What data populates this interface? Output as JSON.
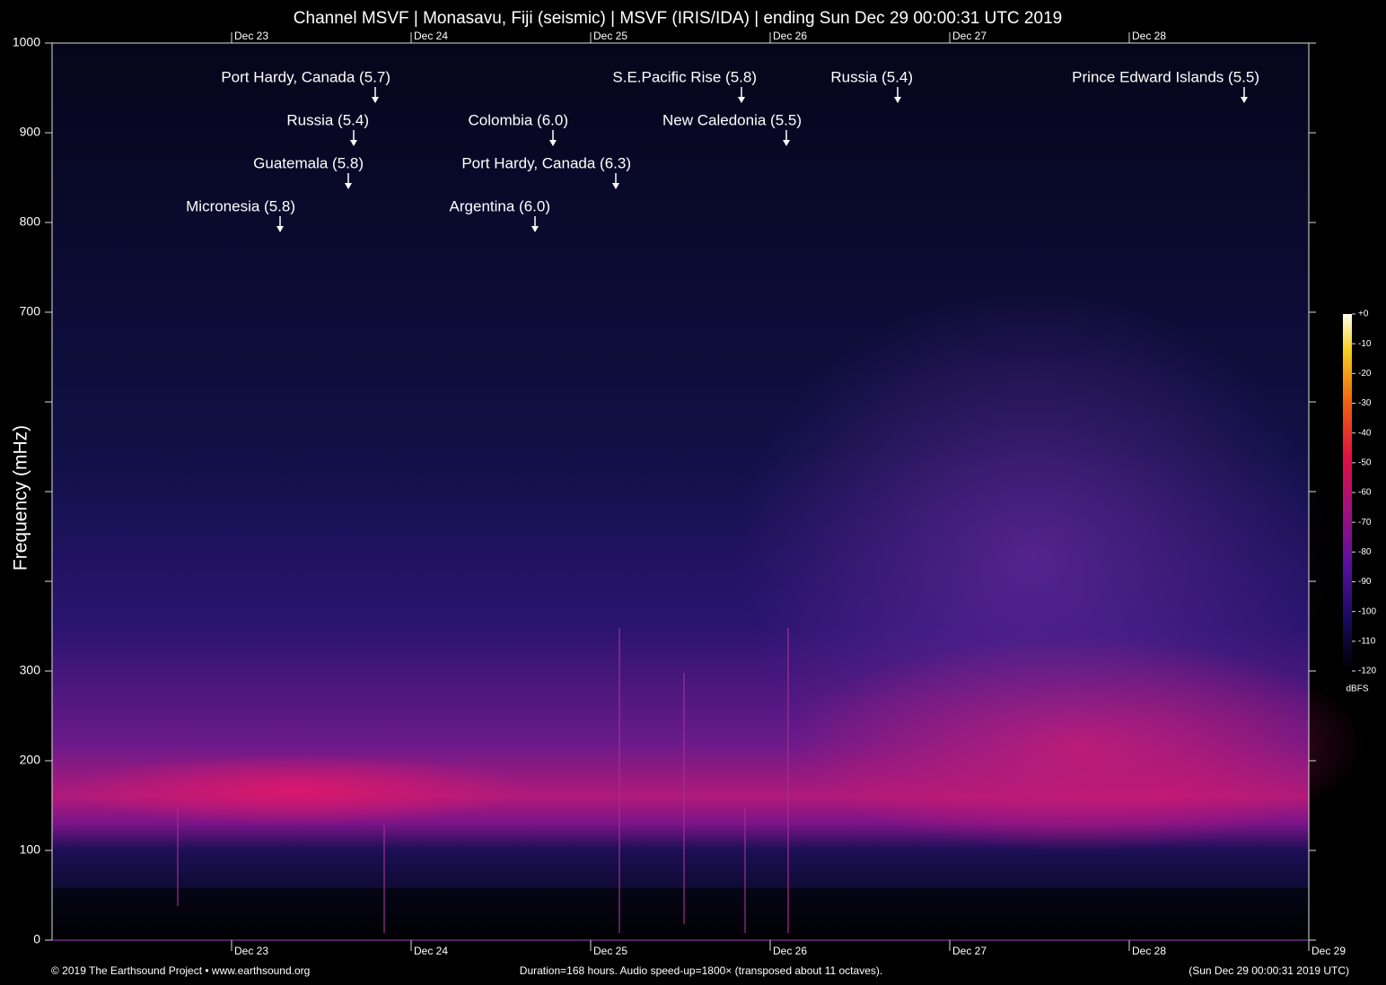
{
  "chart_data": {
    "type": "spectrogram",
    "title": "Channel MSVF | Monasavu, Fiji (seismic) | MSVF (IRIS/IDA) | ending Sun Dec 29 00:00:31 UTC 2019",
    "y_label": "Frequency (mHz)",
    "xlim": [
      22,
      29
    ],
    "xticks": [
      {
        "value": 23,
        "label": "Dec 23"
      },
      {
        "value": 24,
        "label": "Dec 24"
      },
      {
        "value": 25,
        "label": "Dec 25"
      },
      {
        "value": 26,
        "label": "Dec 26"
      },
      {
        "value": 27,
        "label": "Dec 27"
      },
      {
        "value": 28,
        "label": "Dec 28"
      },
      {
        "value": 29,
        "label": "Dec 29"
      }
    ],
    "ylim": [
      0,
      1000
    ],
    "yticks": [
      0,
      100,
      200,
      300,
      700,
      800,
      900,
      1000
    ],
    "yticks_unlabeled": [
      400,
      500,
      600
    ],
    "annotations": [
      {
        "text": "Port Hardy, Canada (5.7)",
        "x": 23.8,
        "y": 933
      },
      {
        "text": "Russia (5.4)",
        "x": 23.68,
        "y": 885
      },
      {
        "text": "Guatemala (5.8)",
        "x": 23.65,
        "y": 837
      },
      {
        "text": "Micronesia (5.8)",
        "x": 23.27,
        "y": 789
      },
      {
        "text": "Colombia (6.0)",
        "x": 24.79,
        "y": 885
      },
      {
        "text": "Port Hardy, Canada (6.3)",
        "x": 25.14,
        "y": 837
      },
      {
        "text": "Argentina (6.0)",
        "x": 24.69,
        "y": 789
      },
      {
        "text": "S.E.Pacific Rise (5.8)",
        "x": 25.84,
        "y": 933
      },
      {
        "text": "New Caledonia (5.5)",
        "x": 26.09,
        "y": 885
      },
      {
        "text": "Russia (5.4)",
        "x": 26.71,
        "y": 933
      },
      {
        "text": "Prince Edward Islands (5.5)",
        "x": 28.64,
        "y": 933
      }
    ],
    "colorbar": {
      "lim": [
        -120,
        0
      ],
      "ticks": [
        {
          "value": 0,
          "label": "+0"
        },
        -10,
        -20,
        -30,
        -40,
        -50,
        -60,
        -70,
        -80,
        -90,
        -100,
        -110,
        -120
      ],
      "label": "dBFS"
    },
    "footer_left": "© 2019 The Earthsound Project • www.earthsound.org",
    "footer_center": "Duration=168 hours. Audio speed-up=1800× (transposed about 11 octaves).",
    "footer_right": "(Sun Dec 29 00:00:31 2019 UTC)"
  }
}
